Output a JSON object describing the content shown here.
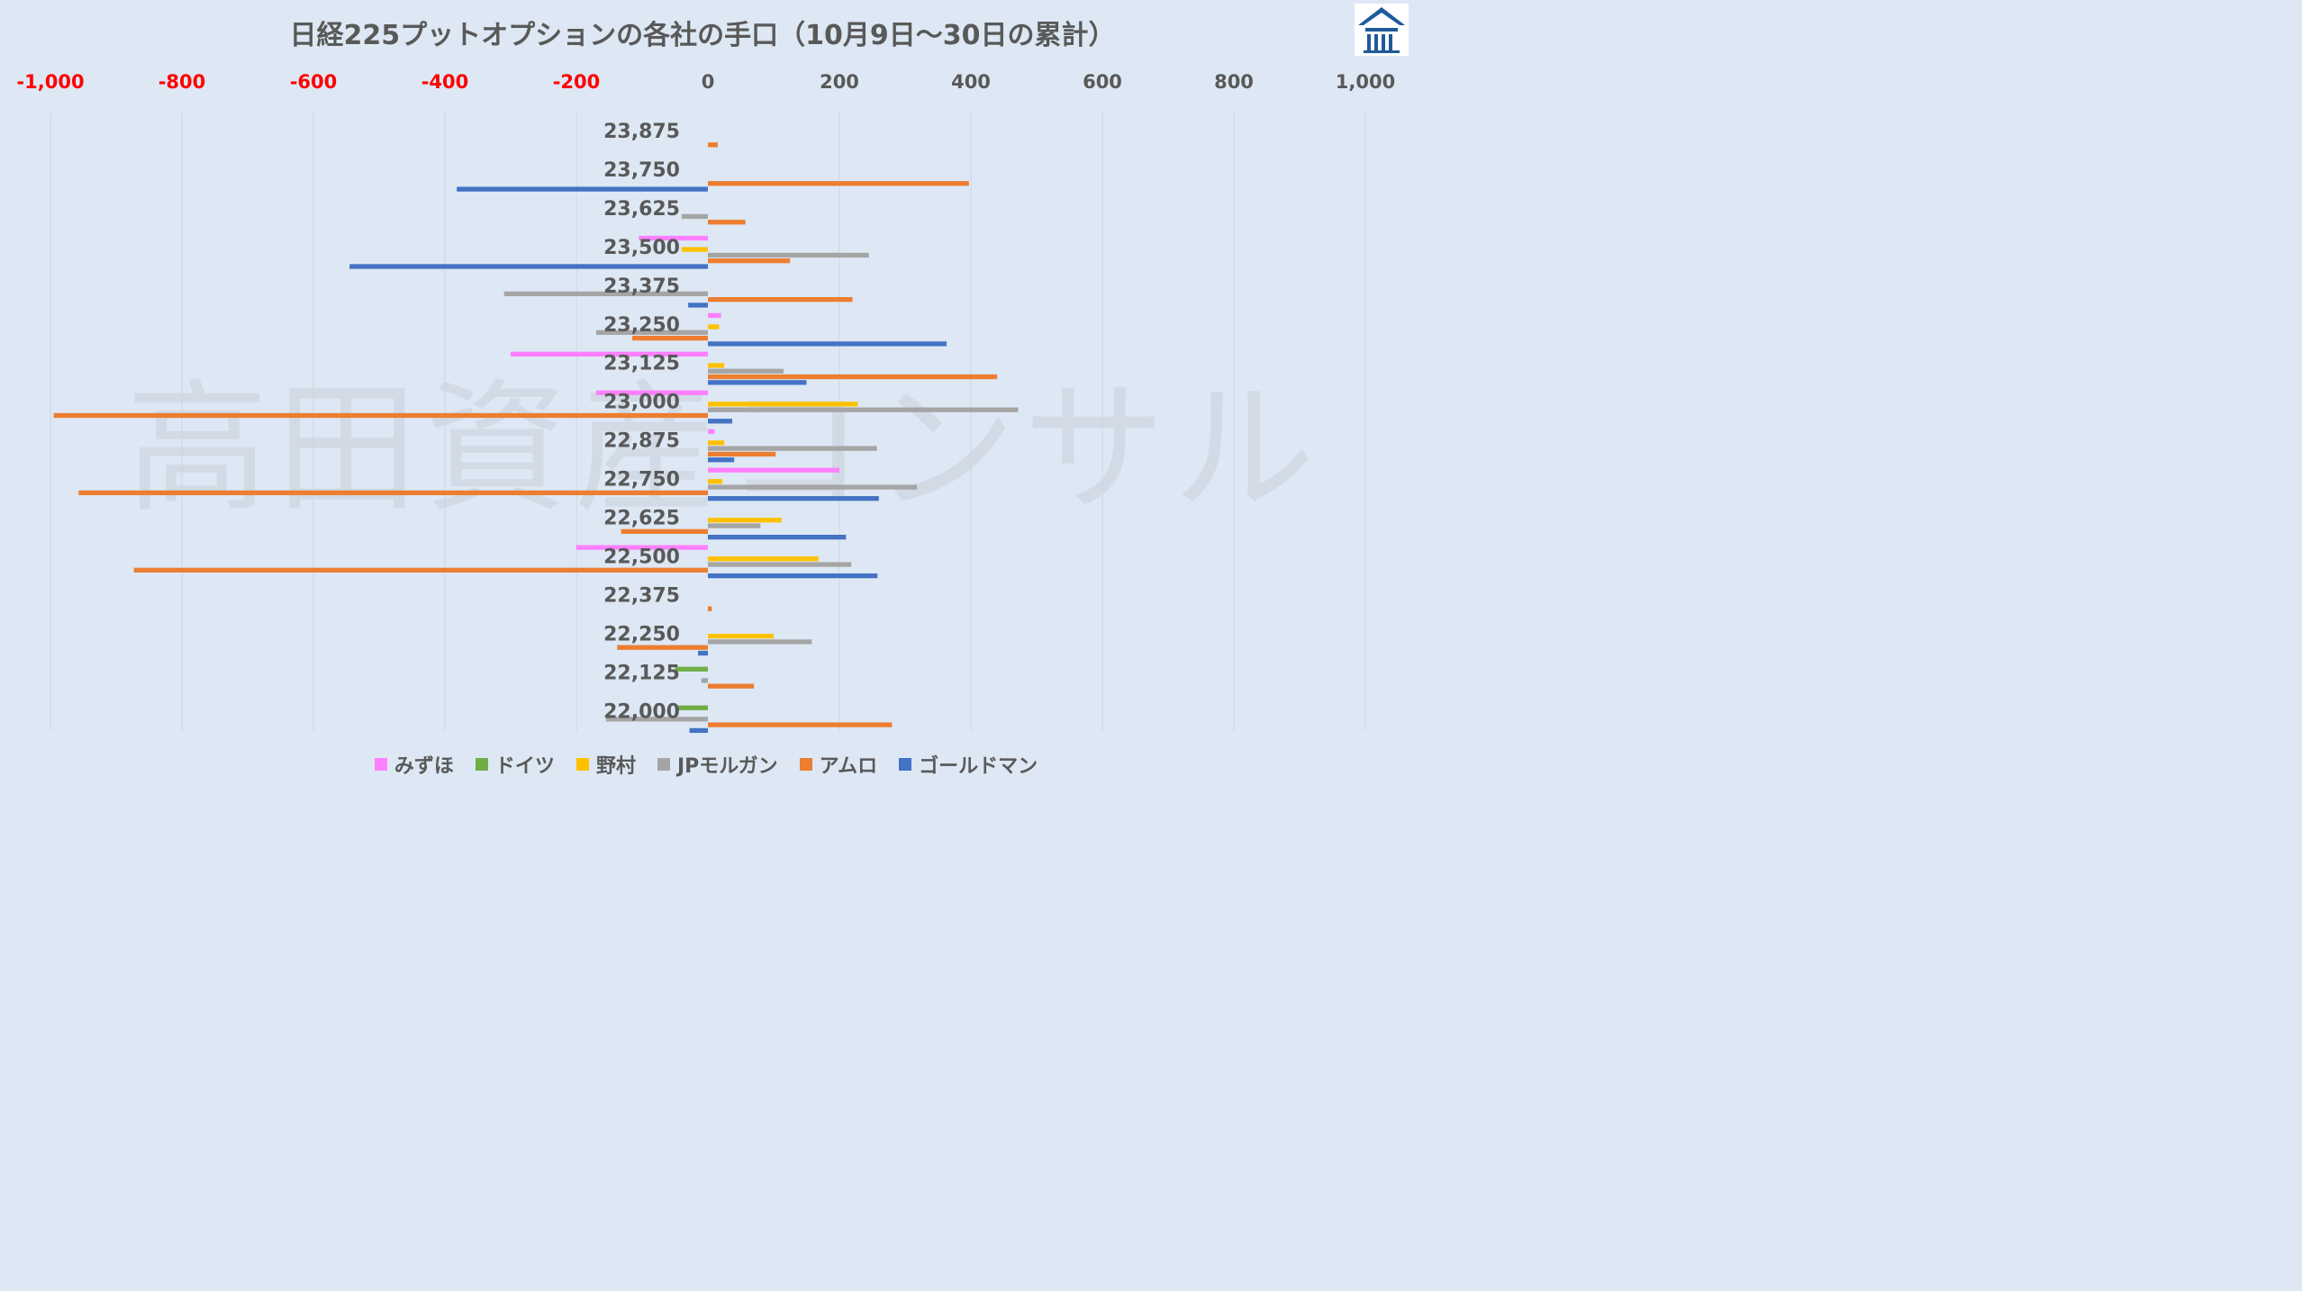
{
  "watermark_text": "高田資産コンサル",
  "colors": {
    "background": "#dde8f4",
    "negative_tick": "#ff0000",
    "positive_tick": "#595959",
    "grid": "#cdd6df"
  },
  "logo": {
    "icon": "takada-house-logo-icon",
    "color": "#1f5a9a"
  },
  "chart_data": {
    "type": "bar",
    "orientation": "horizontal",
    "title": "日経225プットオプションの各社の手口（10月9日〜30日の累計）",
    "xlim": [
      -1000,
      1000
    ],
    "x_ticks": [
      -1000,
      -800,
      -600,
      -400,
      -200,
      0,
      200,
      400,
      600,
      800,
      1000
    ],
    "x_tick_labels": [
      "-1,000",
      "-800",
      "-600",
      "-400",
      "-200",
      "0",
      "200",
      "400",
      "600",
      "800",
      "1,000"
    ],
    "grid": true,
    "legend_position": "bottom",
    "categories": [
      "23,875",
      "23,750",
      "23,625",
      "23,500",
      "23,375",
      "23,250",
      "23,125",
      "23,000",
      "22,875",
      "22,750",
      "22,625",
      "22,500",
      "22,375",
      "22,250",
      "22,125",
      "22,000"
    ],
    "series": [
      {
        "name": "みずほ",
        "color": "#ff80ff",
        "values": [
          0,
          0,
          0,
          -105,
          0,
          20,
          -300,
          -170,
          10,
          200,
          0,
          -200,
          0,
          0,
          0,
          0
        ]
      },
      {
        "name": "ドイツ",
        "color": "#70ad47",
        "values": [
          0,
          0,
          0,
          0,
          0,
          0,
          0,
          0,
          0,
          0,
          0,
          0,
          0,
          0,
          -50,
          -45
        ]
      },
      {
        "name": "野村",
        "color": "#ffc000",
        "values": [
          0,
          0,
          0,
          -40,
          0,
          17,
          25,
          228,
          25,
          22,
          112,
          168,
          0,
          100,
          0,
          0
        ]
      },
      {
        "name": "JPモルガン",
        "color": "#a5a5a5",
        "values": [
          0,
          0,
          -40,
          245,
          -310,
          -170,
          115,
          472,
          257,
          318,
          80,
          218,
          0,
          158,
          -10,
          -155
        ]
      },
      {
        "name": "アムロ",
        "color": "#ed7d31",
        "values": [
          15,
          397,
          57,
          125,
          220,
          -115,
          440,
          -995,
          103,
          -957,
          -132,
          -873,
          6,
          -138,
          70,
          280
        ]
      },
      {
        "name": "ゴールドマン",
        "color": "#4472c4",
        "values": [
          0,
          -382,
          0,
          -545,
          -30,
          363,
          150,
          37,
          40,
          260,
          210,
          258,
          0,
          -15,
          0,
          -28
        ]
      }
    ]
  }
}
